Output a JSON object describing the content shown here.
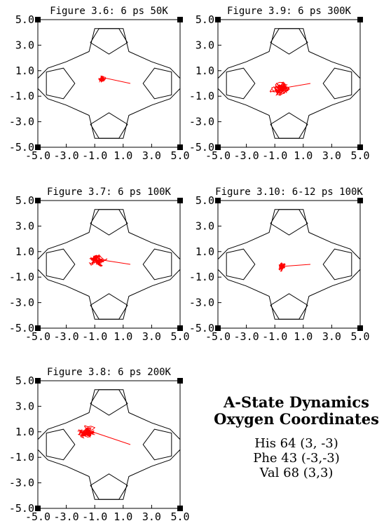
{
  "caption": {
    "title_line1": "A-State Dynamics",
    "title_line2": "Oxygen Coordinates",
    "lines": [
      "His 64 (3, -3)",
      "Phe 43 (-3,-3)",
      "Val 68 (3,3)"
    ]
  },
  "colors": {
    "frame": "#000000",
    "trajectory": "#ff0000"
  },
  "chart_data": [
    {
      "type": "line",
      "title": "Figure 3.6: 6 ps 50K",
      "xlim": [
        -5,
        5
      ],
      "ylim": [
        -5,
        5
      ],
      "xticks": [
        "-5.0",
        "-3.0",
        "-1.0",
        "1.0",
        "3.0",
        "5.0"
      ],
      "yticks": [
        "5.0",
        "3.0",
        "1.0",
        "-1.0",
        "-3.0",
        "-5.0"
      ],
      "grid": false,
      "start": [
        1.5,
        0.0
      ],
      "trajectory": {
        "center": [
          -0.5,
          0.4
        ],
        "spread": [
          0.35,
          0.5
        ],
        "steps": 140,
        "seed": 11
      }
    },
    {
      "type": "line",
      "title": "Figure 3.9: 6 ps 300K",
      "xlim": [
        -5,
        5
      ],
      "ylim": [
        -5,
        5
      ],
      "xticks": [
        "-5.0",
        "-3.0",
        "-1.0",
        "1.0",
        "3.0",
        "5.0"
      ],
      "yticks": [
        "5.0",
        "3.0",
        "1.0",
        "-1.0",
        "-3.0",
        "-5.0"
      ],
      "grid": false,
      "start": [
        1.5,
        0.0
      ],
      "trajectory": {
        "center": [
          -0.6,
          -0.4
        ],
        "spread": [
          0.9,
          0.75
        ],
        "steps": 320,
        "seed": 29
      }
    },
    {
      "type": "line",
      "title": "Figure 3.7: 6 ps 100K",
      "xlim": [
        -5,
        5
      ],
      "ylim": [
        -5,
        5
      ],
      "xticks": [
        "-5.0",
        "-3.0",
        "-1.0",
        "1.0",
        "3.0",
        "5.0"
      ],
      "yticks": [
        "5.0",
        "3.0",
        "1.0",
        "-1.0",
        "-3.0",
        "-5.0"
      ],
      "grid": false,
      "start": [
        1.5,
        0.0
      ],
      "trajectory": {
        "center": [
          -0.8,
          0.3
        ],
        "spread": [
          0.9,
          0.75
        ],
        "steps": 220,
        "seed": 7
      }
    },
    {
      "type": "line",
      "title": "Figure 3.10: 6-12 ps 100K",
      "xlim": [
        -5,
        5
      ],
      "ylim": [
        -5,
        5
      ],
      "xticks": [
        "-5.0",
        "-3.0",
        "-1.0",
        "1.0",
        "3.0",
        "5.0"
      ],
      "yticks": [
        "5.0",
        "3.0",
        "1.0",
        "-1.0",
        "-3.0",
        "-5.0"
      ],
      "grid": false,
      "start": [
        1.5,
        0.0
      ],
      "trajectory": {
        "center": [
          -0.5,
          -0.2
        ],
        "spread": [
          0.45,
          0.55
        ],
        "steps": 200,
        "seed": 3
      }
    },
    {
      "type": "line",
      "title": "Figure 3.8: 6 ps 200K",
      "xlim": [
        -5,
        5
      ],
      "ylim": [
        -5,
        5
      ],
      "xticks": [
        "-5.0",
        "-3.0",
        "-1.0",
        "1.0",
        "3.0",
        "5.0"
      ],
      "yticks": [
        "5.0",
        "3.0",
        "1.0",
        "-1.0",
        "-3.0",
        "-5.0"
      ],
      "grid": false,
      "start": [
        1.5,
        0.0
      ],
      "trajectory": {
        "center": [
          -1.6,
          1.0
        ],
        "spread": [
          1.0,
          0.7
        ],
        "steps": 260,
        "seed": 17
      }
    }
  ]
}
